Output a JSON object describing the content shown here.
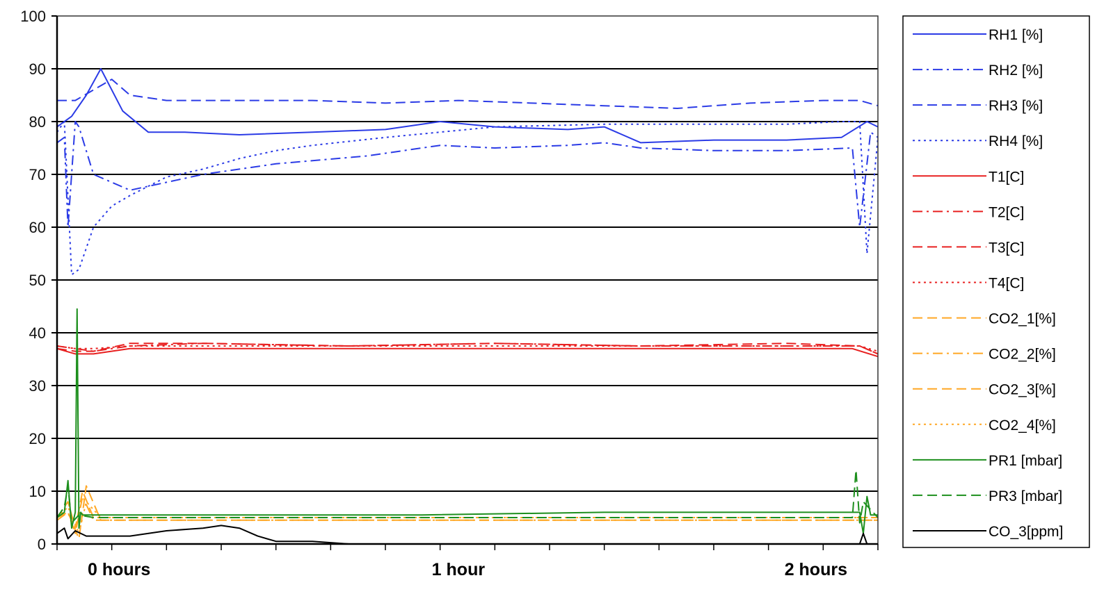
{
  "chart_data": {
    "type": "line",
    "title": "",
    "xlabel": "",
    "ylabel": "",
    "x_range_hours": [
      0,
      2.25
    ],
    "ylim": [
      0,
      100
    ],
    "y_ticks": [
      0,
      10,
      20,
      30,
      40,
      50,
      60,
      70,
      80,
      90,
      100
    ],
    "x_ticks": [
      {
        "x": 0.17,
        "label": "0 hours"
      },
      {
        "x": 1.1,
        "label": "1 hour"
      },
      {
        "x": 2.08,
        "label": "2 hours"
      }
    ],
    "grid": {
      "horizontal": true,
      "vertical": false
    },
    "legend_position": "right",
    "series": [
      {
        "name": "RH1 [%]",
        "color": "#2b3be6",
        "dash": "solid",
        "x": [
          0,
          0.04,
          0.08,
          0.12,
          0.18,
          0.25,
          0.35,
          0.5,
          0.7,
          0.9,
          1.05,
          1.2,
          1.4,
          1.5,
          1.6,
          1.8,
          2.0,
          2.15,
          2.22,
          2.25
        ],
        "y": [
          79,
          81,
          85,
          90,
          82,
          78,
          78,
          77.5,
          78,
          78.5,
          80,
          79,
          78.5,
          79,
          76,
          76.5,
          76.5,
          77,
          80,
          79
        ]
      },
      {
        "name": "RH2 [%]",
        "color": "#2b3be6",
        "dash": "dashdot",
        "x": [
          0,
          0.02,
          0.03,
          0.05,
          0.06,
          0.1,
          0.2,
          0.4,
          0.6,
          0.85,
          1.0,
          1.05,
          1.2,
          1.4,
          1.5,
          1.6,
          1.8,
          2.0,
          2.18,
          2.2,
          2.23,
          2.25
        ],
        "y": [
          76,
          77,
          60,
          80,
          79,
          70,
          67,
          70,
          72,
          73.5,
          75,
          75.5,
          75,
          75.5,
          76,
          75,
          74.5,
          74.5,
          75,
          60,
          78,
          77
        ]
      },
      {
        "name": "RH3 [%]",
        "color": "#2b3be6",
        "dash": "dash",
        "x": [
          0,
          0.05,
          0.1,
          0.15,
          0.2,
          0.3,
          0.5,
          0.7,
          0.9,
          1.1,
          1.3,
          1.5,
          1.7,
          1.9,
          2.1,
          2.2,
          2.25
        ],
        "y": [
          84,
          84,
          86,
          88,
          85,
          84,
          84,
          84,
          83.5,
          84,
          83.5,
          83,
          82.5,
          83.5,
          84,
          84,
          83
        ]
      },
      {
        "name": "RH4 [%]",
        "color": "#2b3be6",
        "dash": "dot",
        "x": [
          0,
          0.02,
          0.04,
          0.06,
          0.1,
          0.15,
          0.2,
          0.3,
          0.4,
          0.5,
          0.6,
          0.7,
          0.9,
          1.05,
          1.2,
          1.5,
          1.8,
          2.0,
          2.15,
          2.2,
          2.22,
          2.25
        ],
        "y": [
          78,
          80,
          51,
          52,
          60,
          64,
          66,
          69.5,
          71,
          73,
          74.5,
          75.5,
          77,
          78,
          79,
          79.5,
          79.5,
          79.5,
          80,
          80,
          55,
          77
        ]
      },
      {
        "name": "T1[C]",
        "color": "#e82020",
        "dash": "solid",
        "x": [
          0,
          0.05,
          0.1,
          0.2,
          0.4,
          0.8,
          1.2,
          1.6,
          2.0,
          2.18,
          2.25
        ],
        "y": [
          37,
          36,
          36,
          37,
          37,
          37,
          37,
          37,
          37,
          37,
          35.5
        ]
      },
      {
        "name": "T2[C]",
        "color": "#e82020",
        "dash": "dashdot",
        "x": [
          0,
          0.05,
          0.1,
          0.2,
          0.4,
          0.8,
          1.2,
          1.6,
          2.0,
          2.2,
          2.25
        ],
        "y": [
          37.5,
          37,
          36.5,
          37.5,
          38,
          37.5,
          38,
          37.5,
          37.5,
          37.5,
          36
        ]
      },
      {
        "name": "T3[C]",
        "color": "#e82020",
        "dash": "dash",
        "x": [
          0,
          0.05,
          0.1,
          0.2,
          0.4,
          0.8,
          1.2,
          1.6,
          2.0,
          2.2,
          2.25
        ],
        "y": [
          37,
          36.5,
          36.5,
          38,
          38,
          37.5,
          38,
          37.5,
          38,
          37.5,
          36
        ]
      },
      {
        "name": "T4[C]",
        "color": "#e82020",
        "dash": "dot",
        "x": [
          0,
          0.05,
          0.1,
          0.2,
          0.4,
          0.8,
          1.2,
          1.6,
          2.0,
          2.2,
          2.25
        ],
        "y": [
          37.5,
          37,
          37,
          37.5,
          37.5,
          37.5,
          37.5,
          37.5,
          37.5,
          37.5,
          36.5
        ]
      },
      {
        "name": "CO2_1[%]",
        "color": "#ffa724",
        "dash": "dash",
        "x": [
          0,
          0.03,
          0.05,
          0.07,
          0.1,
          0.2,
          0.5,
          1.0,
          1.5,
          2.0,
          2.25
        ],
        "y": [
          5,
          8,
          3,
          10,
          5,
          5,
          5,
          5,
          5,
          5,
          5
        ]
      },
      {
        "name": "CO2_2[%]",
        "color": "#ffa724",
        "dash": "dashdot",
        "x": [
          0,
          0.03,
          0.05,
          0.07,
          0.1,
          0.2,
          0.5,
          1.0,
          1.5,
          2.0,
          2.25
        ],
        "y": [
          5,
          6,
          2,
          9,
          4.5,
          4.5,
          4.5,
          4.5,
          4.5,
          4.5,
          4.5
        ]
      },
      {
        "name": "CO2_3[%]",
        "color": "#ffa724",
        "dash": "dash",
        "x": [
          0,
          0.03,
          0.06,
          0.08,
          0.12,
          0.3,
          0.8,
          1.3,
          2.0,
          2.25
        ],
        "y": [
          4.5,
          6,
          1,
          11,
          4.5,
          4.5,
          4.5,
          4.5,
          4.5,
          4.5
        ]
      },
      {
        "name": "CO2_4[%]",
        "color": "#ffa724",
        "dash": "dot",
        "x": [
          0,
          0.03,
          0.06,
          0.08,
          0.12,
          0.3,
          0.8,
          1.3,
          2.0,
          2.25
        ],
        "y": [
          5,
          7,
          2,
          8,
          5,
          5,
          5,
          5,
          5,
          5
        ]
      },
      {
        "name": "PR1 [mbar]",
        "color": "#1d8f1d",
        "dash": "solid",
        "x": [
          0,
          0.02,
          0.03,
          0.04,
          0.05,
          0.055,
          0.06,
          0.065,
          0.07,
          0.08,
          0.1,
          0.5,
          1.0,
          1.5,
          2.0,
          2.2,
          2.21,
          2.22,
          2.23,
          2.25
        ],
        "y": [
          5,
          6,
          12,
          3,
          6,
          44.5,
          3,
          6,
          5.5,
          5.5,
          5.5,
          5.5,
          5.5,
          6,
          6,
          6,
          2,
          9,
          5.5,
          5.5
        ]
      },
      {
        "name": "PR3 [mbar]",
        "color": "#1d8f1d",
        "dash": "dash",
        "x": [
          0,
          0.02,
          0.03,
          0.04,
          0.06,
          0.1,
          0.5,
          1.0,
          1.5,
          2.0,
          2.18,
          2.19,
          2.2,
          2.21,
          2.25
        ],
        "y": [
          5,
          7,
          11,
          4,
          5.5,
          5,
          5,
          5,
          5,
          5,
          5,
          14,
          4,
          8,
          5
        ]
      },
      {
        "name": "CO_3[ppm]",
        "color": "#000000",
        "dash": "solid",
        "x": [
          0,
          0.02,
          0.03,
          0.05,
          0.08,
          0.12,
          0.2,
          0.3,
          0.4,
          0.45,
          0.5,
          0.55,
          0.6,
          0.7,
          0.8,
          1.0,
          1.5,
          2.0,
          2.2,
          2.21,
          2.22,
          2.25
        ],
        "y": [
          2,
          3,
          1,
          2.5,
          1.5,
          1.5,
          1.5,
          2.5,
          3,
          3.5,
          3,
          1.5,
          0.5,
          0.5,
          0,
          0,
          0,
          0,
          0,
          2,
          0,
          0
        ]
      }
    ]
  }
}
